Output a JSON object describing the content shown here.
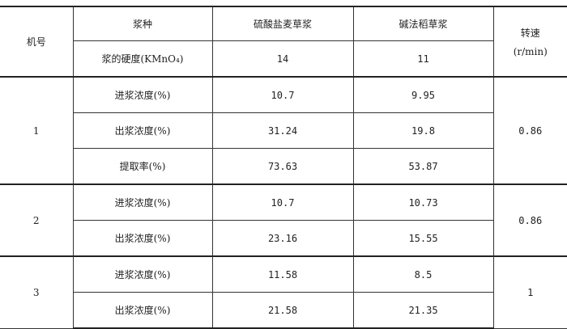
{
  "header": {
    "machine_no": "机号",
    "pulp_type": "浆种",
    "col_a": "硫酸盐麦草浆",
    "col_b": "碱法稻草浆",
    "speed": "转速",
    "speed_unit": "(r/min)",
    "hardness_label": "浆的硬度(KMnO₄)",
    "hardness_a": "14",
    "hardness_b": "11"
  },
  "groups": [
    {
      "machine": "1",
      "speed": "0.86",
      "rows": [
        {
          "label": "进浆浓度(%)",
          "a": "10.7",
          "b": "9.95"
        },
        {
          "label": "出浆浓度(%)",
          "a": "31.24",
          "b": "19.8"
        },
        {
          "label": "提取率(%)",
          "a": "73.63",
          "b": "53.87"
        }
      ]
    },
    {
      "machine": "2",
      "speed": "0.86",
      "rows": [
        {
          "label": "进浆浓度(%)",
          "a": "10.7",
          "b": "10.73"
        },
        {
          "label": "出浆浓度(%)",
          "a": "23.16",
          "b": "15.55"
        }
      ]
    },
    {
      "machine": "3",
      "speed": "1",
      "rows": [
        {
          "label": "进浆浓度(%)",
          "a": "11.58",
          "b": "8.5"
        },
        {
          "label": "出浆浓度(%)",
          "a": "21.58",
          "b": "21.35"
        }
      ]
    }
  ]
}
